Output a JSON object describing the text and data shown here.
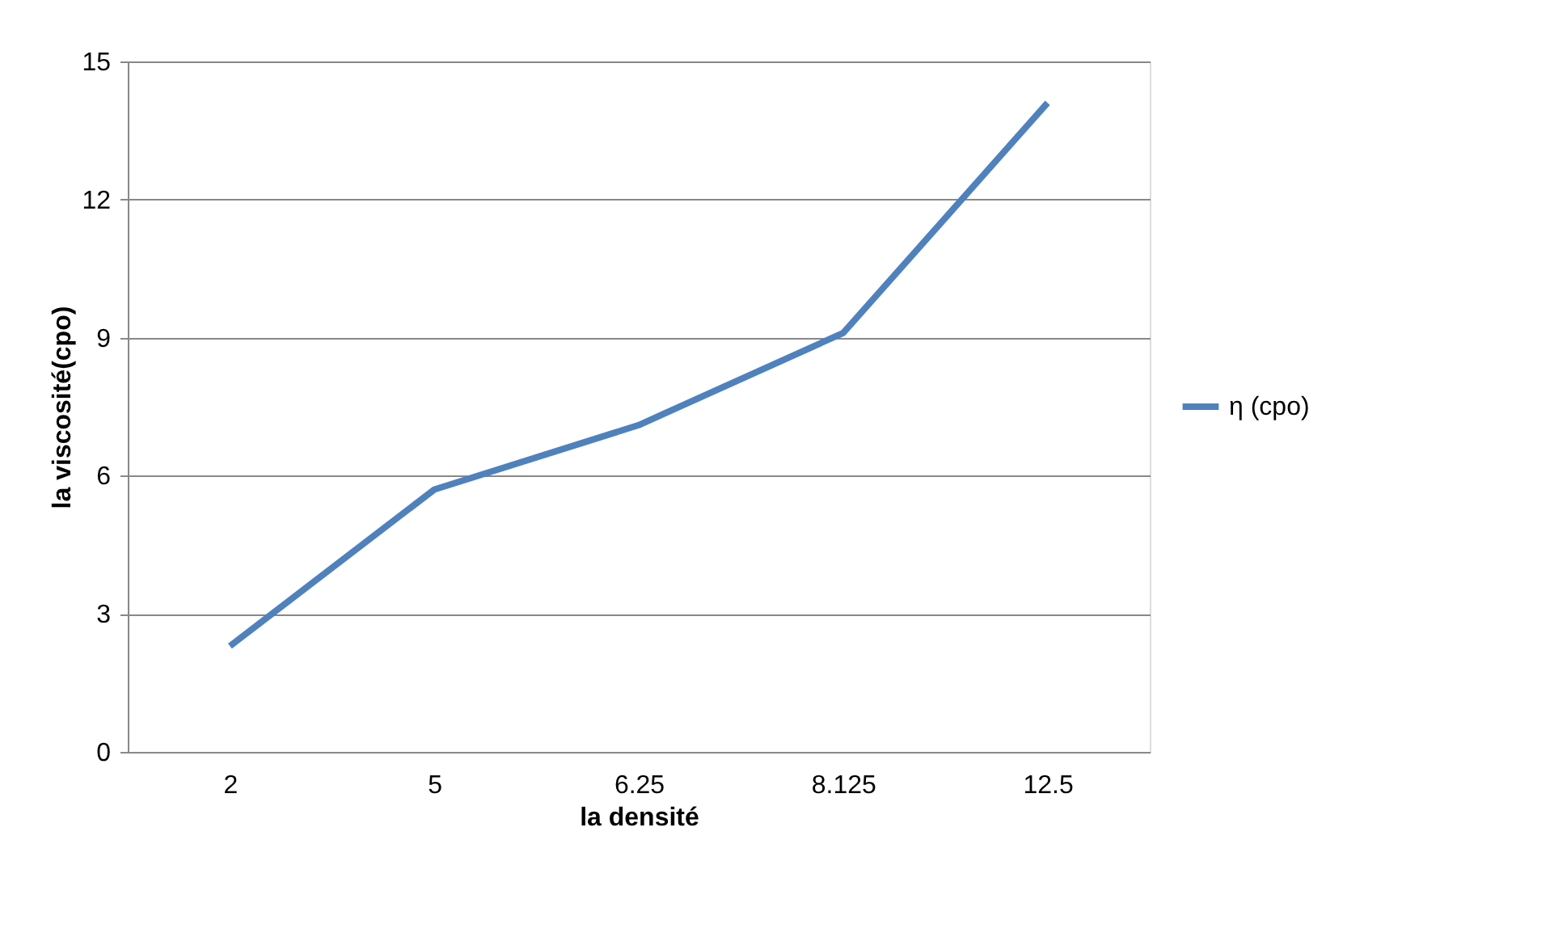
{
  "chart_data": {
    "type": "line",
    "xlabel": "la densité",
    "ylabel": "la viscosité(cpo)",
    "categories": [
      "2",
      "5",
      "6.25",
      "8.125",
      "12.5"
    ],
    "series": [
      {
        "name": "η (cpo)",
        "color": "#4f81bd",
        "values": [
          2.3,
          5.7,
          7.1,
          9.1,
          14.1
        ]
      }
    ],
    "ylim": [
      0,
      15
    ],
    "yticks": [
      0,
      3,
      6,
      9,
      12,
      15
    ],
    "grid": "y",
    "legend": "right",
    "marker": "none",
    "line_style": "solid"
  }
}
